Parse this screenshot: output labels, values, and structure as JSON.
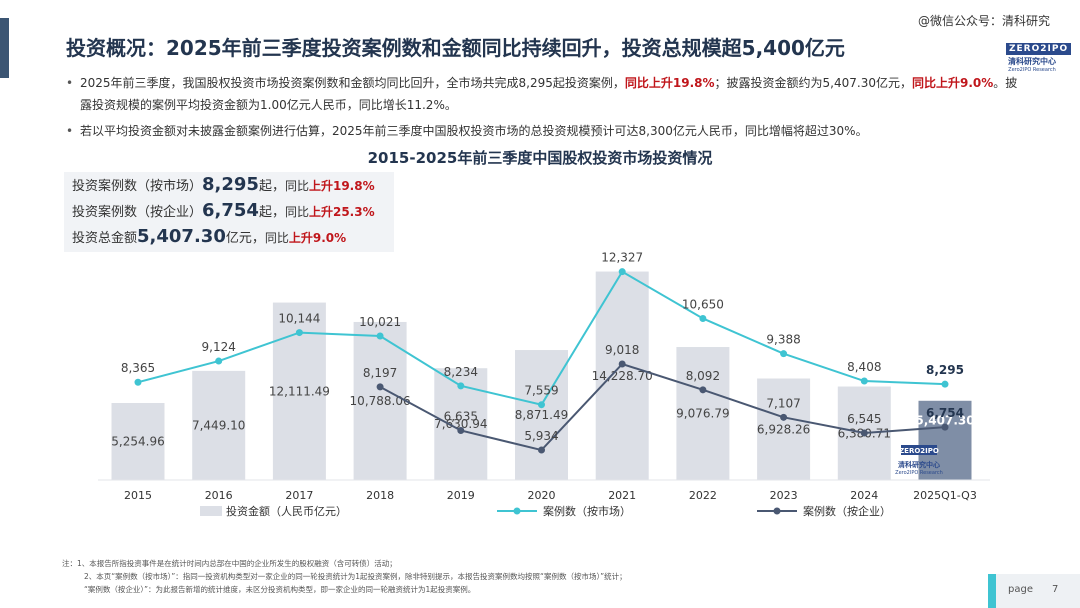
{
  "header": {
    "title": "投资概况：2025年前三季度投资案例数和金额同比持续回升，投资总规模超5,400亿元",
    "watermark": "@微信公众号：清科研究",
    "logo": {
      "word": "ZERO2IPO",
      "cn": "清科研究中心",
      "en": "Zero2IPO Research"
    }
  },
  "bullets": {
    "b1": {
      "t1": "2025年前三季度，我国股权投资市场投资案例数和金额均同比回升，全市场共完成8,295起投资案例，",
      "r1": "同比上升19.8%",
      "t2": "；披露投资金额约为5,407.30亿元，",
      "r2": "同比上升9.0%",
      "t3": "。披露投资规模的案例平均投资金额为1.00亿元人民币，同比增长11.2%。"
    },
    "b2": "若以平均投资金额对未披露金额案例进行估算，2025年前三季度中国股权投资市场的总投资规模预计可达8,300亿元人民币，同比增幅将超过30%。"
  },
  "kpi": [
    {
      "label": "投资案例数（按市场）",
      "value": "8,295",
      "unit": "起，",
      "yoy": "同比",
      "pct": "上升19.8%"
    },
    {
      "label": "投资案例数（按企业）",
      "value": "6,754",
      "unit": "起，",
      "yoy": "同比",
      "pct": "上升25.3%"
    },
    {
      "label": "投资总金额",
      "value": "5,407.30",
      "unit": "亿元，",
      "yoy": "同比",
      "pct": "上升9.0%"
    }
  ],
  "chart_data": {
    "type": "bar",
    "title": "2015-2025年前三季度中国股权投资市场投资情况",
    "categories": [
      "2015",
      "2016",
      "2017",
      "2018",
      "2019",
      "2020",
      "2021",
      "2022",
      "2023",
      "2024",
      "2025Q1-Q3"
    ],
    "series": [
      {
        "name": "投资金额（人民币亿元）",
        "kind": "bar",
        "color": "#dcdfe6",
        "highlight_color": "#7f8ea6",
        "values": [
          5254.96,
          7449.1,
          12111.49,
          10788.06,
          7630.94,
          8871.49,
          14228.7,
          9076.79,
          6928.26,
          6380.71,
          5407.3
        ],
        "labels": [
          "5,254.96",
          "7,449.10",
          "12,111.49",
          "10,788.06",
          "7,630.94",
          "8,871.49",
          "14,228.70",
          "9,076.79",
          "6,928.26",
          "6,380.71",
          "5,407.30"
        ]
      },
      {
        "name": "案例数（按市场）",
        "kind": "line",
        "color": "#3fc4d2",
        "values": [
          8365,
          9124,
          10144,
          10021,
          8234,
          7559,
          12327,
          10650,
          9388,
          8408,
          8295
        ],
        "labels": [
          "8,365",
          "9,124",
          "10,144",
          "10,021",
          "8,234",
          "7,559",
          "12,327",
          "10,650",
          "9,388",
          "8,408",
          "8,295"
        ]
      },
      {
        "name": "案例数（按企业）",
        "kind": "line",
        "color": "#4a5872",
        "values": [
          null,
          null,
          null,
          8197,
          6635,
          5934,
          9018,
          8092,
          7107,
          6545,
          6754
        ],
        "labels": [
          null,
          null,
          null,
          "8,197",
          "6,635",
          "5,934",
          "9,018",
          "8,092",
          "7,107",
          "6,545",
          "6,754"
        ]
      }
    ]
  },
  "footnotes": [
    "注：1、本报告所指投资事件是在统计时间内总部在中国的企业所发生的股权融资（含可转债）活动；",
    "2、本页“案例数（按市场）”：指同一投资机构类型对一家企业的同一轮投资统计为1起投资案例，除非特别提示，本报告投资案例数均按照“案例数（按市场）”统计；",
    "“案例数（按企业）”：为此报告新增的统计维度，未区分投资机构类型，即一家企业的同一轮融资统计为1起投资案例。"
  ],
  "page": {
    "label": "page",
    "number": "7"
  }
}
